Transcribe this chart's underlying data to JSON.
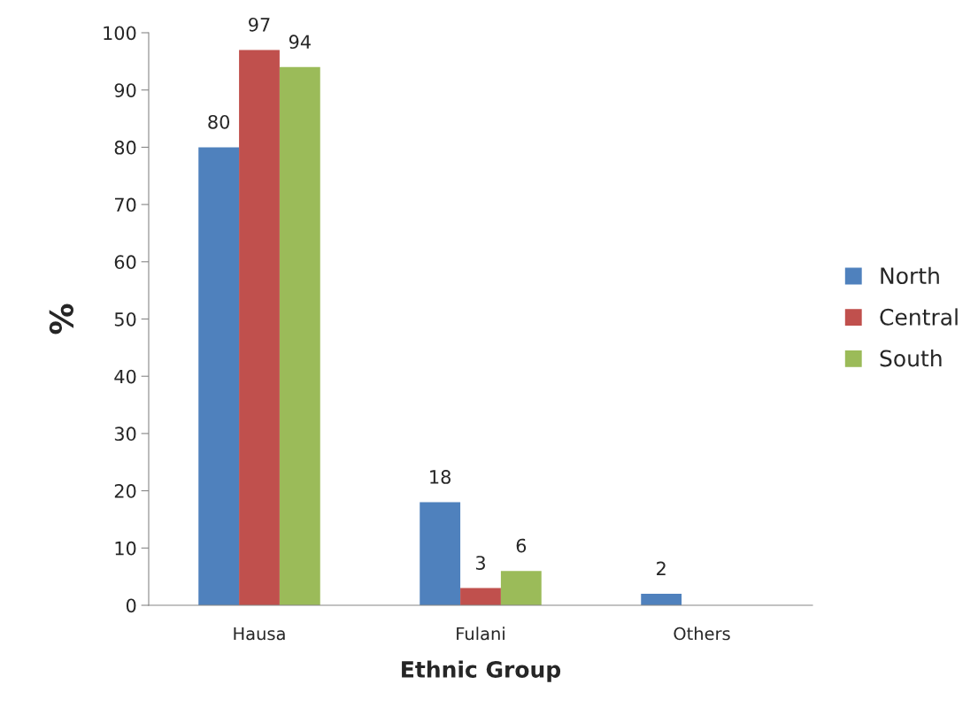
{
  "chart_data": {
    "type": "bar",
    "xlabel": "Ethnic Group",
    "ylabel": "%",
    "categories": [
      "Hausa",
      "Fulani",
      "Others"
    ],
    "series": [
      {
        "name": "North",
        "color": "#4f81bd",
        "values": [
          80,
          18,
          2
        ]
      },
      {
        "name": "Central",
        "color": "#c0504d",
        "values": [
          97,
          3,
          null
        ]
      },
      {
        "name": "South",
        "color": "#9bbb59",
        "values": [
          94,
          6,
          null
        ]
      }
    ],
    "ylim": [
      0,
      100
    ],
    "yticks": [
      0,
      10,
      20,
      30,
      40,
      50,
      60,
      70,
      80,
      90,
      100
    ],
    "grid": false,
    "legend": "right",
    "data_labels": true
  }
}
